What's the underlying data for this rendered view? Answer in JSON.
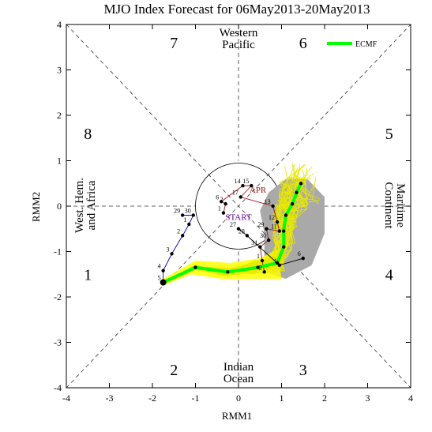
{
  "chart_data": {
    "type": "line",
    "title": "MJO Index Forecast for 06May2013-20May2013",
    "xlabel": "RMM1",
    "ylabel": "RMM2",
    "xlim": [
      -4,
      4
    ],
    "ylim": [
      -4,
      4
    ],
    "xticks": [
      -4,
      -3,
      -2,
      -1,
      0,
      1,
      2,
      3,
      4
    ],
    "yticks": [
      -4,
      -3,
      -2,
      -1,
      0,
      1,
      2,
      3,
      4
    ],
    "phase_labels": [
      {
        "text": "1",
        "x": -3.5,
        "y": -1.5
      },
      {
        "text": "2",
        "x": -1.5,
        "y": -3.6
      },
      {
        "text": "3",
        "x": 1.5,
        "y": -3.6
      },
      {
        "text": "4",
        "x": 3.5,
        "y": -1.5
      },
      {
        "text": "5",
        "x": 3.5,
        "y": 1.6
      },
      {
        "text": "6",
        "x": 1.5,
        "y": 3.6
      },
      {
        "text": "7",
        "x": -1.5,
        "y": 3.6
      },
      {
        "text": "8",
        "x": -3.5,
        "y": 1.6
      }
    ],
    "region_labels": {
      "top": [
        "Western",
        "Pacific"
      ],
      "bottom": [
        "Indian",
        "Ocean"
      ],
      "left": [
        "West. Hem.",
        "and Africa"
      ],
      "right": [
        "Maritime",
        "Continent"
      ]
    },
    "legend": {
      "label": "ECMF",
      "color": "#00ff00",
      "position": "top-right"
    },
    "month_labels": [
      {
        "text": "APR",
        "x": 0.45,
        "y": 0.3
      },
      {
        "text": "START",
        "x": 0.0,
        "y": -0.3
      }
    ],
    "observed_march": {
      "color": "#0000cc",
      "points": [
        {
          "label": "29",
          "x": -1.3,
          "y": -0.2
        },
        {
          "label": "30",
          "x": -1.05,
          "y": -0.2
        },
        {
          "label": "1",
          "x": -1.15,
          "y": -0.4
        },
        {
          "label": "2",
          "x": -1.3,
          "y": -0.65
        },
        {
          "label": "3",
          "x": -1.55,
          "y": -1.05
        },
        {
          "label": "4",
          "x": -1.75,
          "y": -1.42
        },
        {
          "label": "5",
          "x": -1.75,
          "y": -1.68
        }
      ]
    },
    "observed_april": {
      "color": "#aa1111",
      "points": [
        {
          "label": "1",
          "x": -0.35,
          "y": -0.15
        },
        {
          "label": "2",
          "x": -0.3,
          "y": 0.05
        },
        {
          "label": "6",
          "x": -0.4,
          "y": 0.1
        },
        {
          "label": "14",
          "x": 0.1,
          "y": 0.45
        },
        {
          "label": "15",
          "x": 0.3,
          "y": 0.45
        },
        {
          "label": "17",
          "x": 0.05,
          "y": 0.2
        },
        {
          "label": "13",
          "x": 0.8,
          "y": 0.0
        },
        {
          "label": "12",
          "x": 0.9,
          "y": -0.35
        },
        {
          "label": "11",
          "x": 0.95,
          "y": -0.55
        },
        {
          "label": "29",
          "x": 0.65,
          "y": -0.5
        },
        {
          "label": "30",
          "x": 0.7,
          "y": -0.75
        },
        {
          "label": "31",
          "x": 0.5,
          "y": -0.9
        },
        {
          "label": "1",
          "x": 0.55,
          "y": -1.2
        },
        {
          "label": "2",
          "x": 0.6,
          "y": -1.45
        }
      ]
    },
    "observed_may": {
      "color": "#000000",
      "points": [
        {
          "label": "27",
          "x": 0.0,
          "y": -0.5
        },
        {
          "label": "28",
          "x": 0.2,
          "y": -0.65
        },
        {
          "label": "1",
          "x": 0.95,
          "y": -1.3
        },
        {
          "label": "6",
          "x": 1.5,
          "y": -1.15
        }
      ]
    },
    "ensemble_mean": {
      "name": "ECMF",
      "color": "#00ff00",
      "x": [
        -1.75,
        -1.0,
        -0.25,
        0.45,
        0.9,
        1.05,
        1.05,
        1.1,
        1.25,
        1.35,
        1.45
      ],
      "y": [
        -1.68,
        -1.35,
        -1.45,
        -1.35,
        -1.25,
        -0.9,
        -0.55,
        -0.2,
        0.05,
        0.3,
        0.5
      ]
    }
  }
}
